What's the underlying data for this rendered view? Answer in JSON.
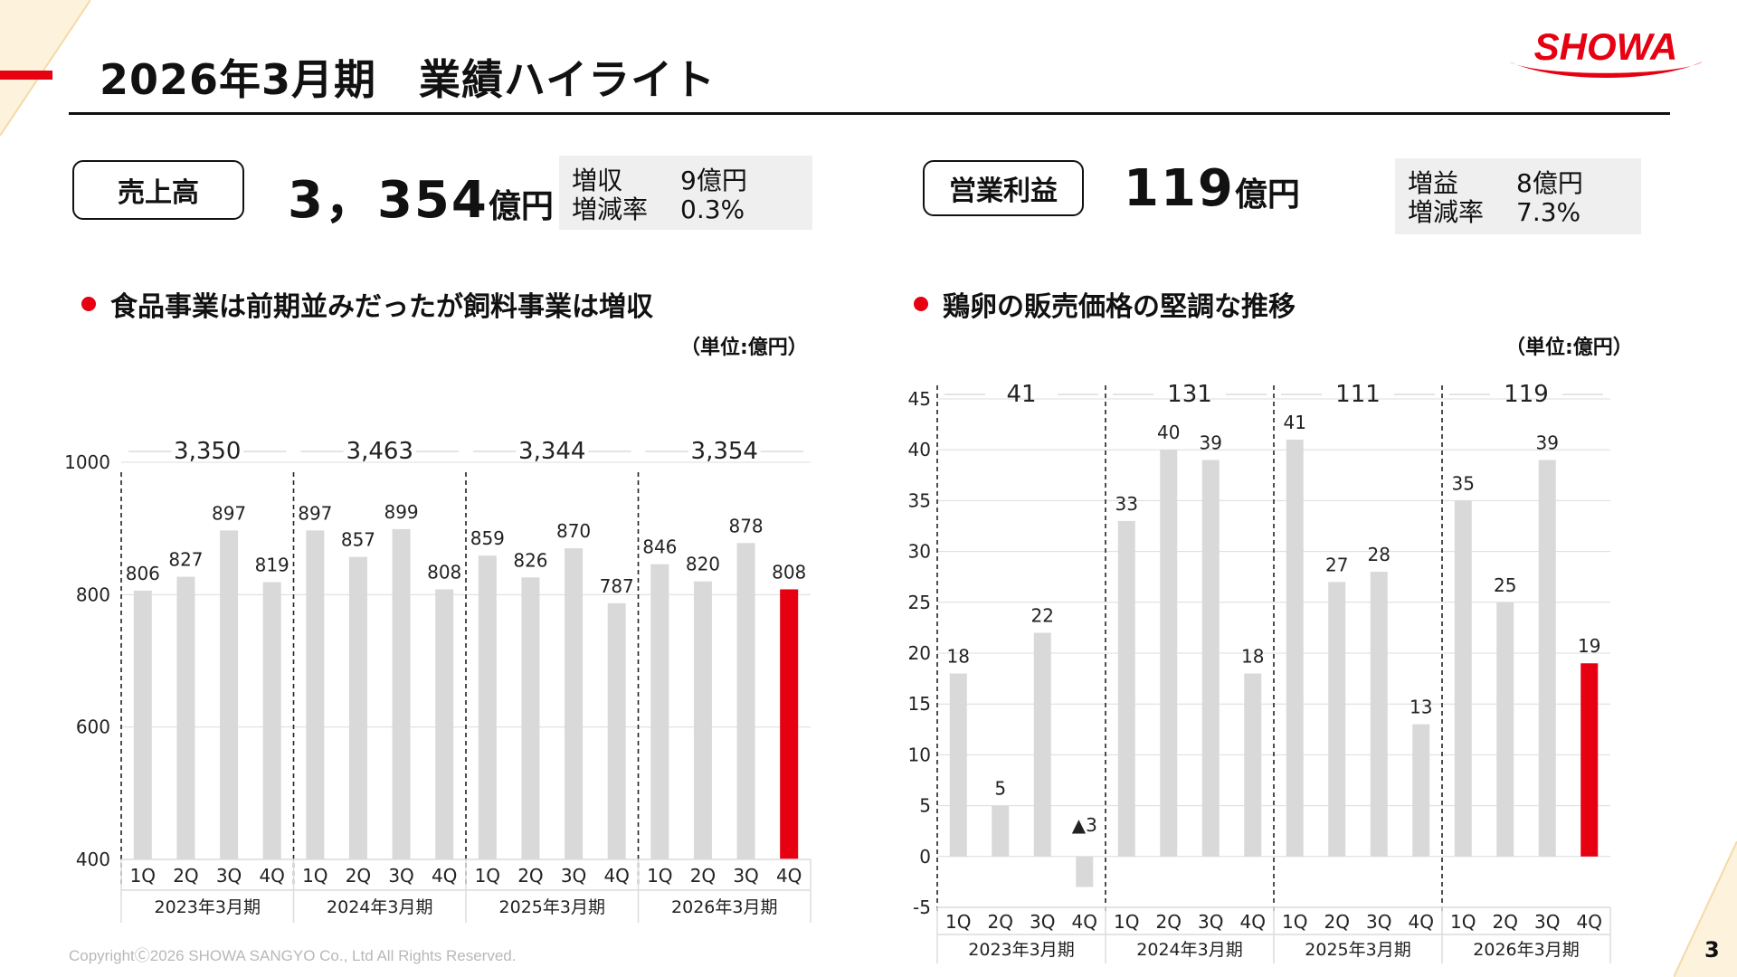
{
  "header": {
    "title": "2026年3月期　業績ハイライト",
    "logo_text": "SHOWA",
    "accent_color": "#e60012"
  },
  "kpis": {
    "sales": {
      "label": "売上高",
      "value": "3，354",
      "unit": "億円",
      "delta_label": "増収",
      "delta_value": "9億円",
      "rate_label": "増減率",
      "rate_value": "0.3%"
    },
    "profit": {
      "label": "営業利益",
      "value": "119",
      "unit": "億円",
      "delta_label": "増益",
      "delta_value": "8億円",
      "rate_label": "増減率",
      "rate_value": "7.3%"
    }
  },
  "sections": {
    "left_heading": "食品事業は前期並みだったが飼料事業は増収",
    "right_heading": "鶏卵の販売価格の堅調な推移",
    "left_unit": "（単位:億円）",
    "right_unit": "（単位:億円）"
  },
  "chart_data": [
    {
      "type": "bar",
      "categories": [
        "1Q",
        "2Q",
        "3Q",
        "4Q",
        "1Q",
        "2Q",
        "3Q",
        "4Q",
        "1Q",
        "2Q",
        "3Q",
        "4Q",
        "1Q",
        "2Q",
        "3Q",
        "4Q"
      ],
      "groups": [
        "2023年3月期",
        "2024年3月期",
        "2025年3月期",
        "2026年3月期"
      ],
      "group_totals": [
        "3,350",
        "3,463",
        "3,344",
        "3,354"
      ],
      "values": [
        806,
        827,
        897,
        819,
        897,
        857,
        899,
        808,
        859,
        826,
        870,
        787,
        846,
        820,
        878,
        808
      ],
      "value_labels": [
        "806",
        "827",
        "897",
        "819",
        "897",
        "857",
        "899",
        "808",
        "859",
        "826",
        "870",
        "787",
        "846",
        "820",
        "878",
        "808"
      ],
      "highlight_index": 15,
      "ylim": [
        400,
        1000
      ],
      "yticks": [
        400,
        600,
        800,
        1000
      ],
      "colors": {
        "bar": "#d9d9d9",
        "highlight": "#e60012"
      },
      "grid": true
    },
    {
      "type": "bar",
      "categories": [
        "1Q",
        "2Q",
        "3Q",
        "4Q",
        "1Q",
        "2Q",
        "3Q",
        "4Q",
        "1Q",
        "2Q",
        "3Q",
        "4Q",
        "1Q",
        "2Q",
        "3Q",
        "4Q"
      ],
      "groups": [
        "2023年3月期",
        "2024年3月期",
        "2025年3月期",
        "2026年3月期"
      ],
      "group_totals": [
        "41",
        "131",
        "111",
        "119"
      ],
      "values": [
        18,
        5,
        22,
        -3,
        33,
        40,
        39,
        18,
        41,
        27,
        28,
        13,
        35,
        25,
        39,
        19
      ],
      "value_labels": [
        "18",
        "5",
        "22",
        "▲3",
        "33",
        "40",
        "39",
        "18",
        "41",
        "27",
        "28",
        "13",
        "35",
        "25",
        "39",
        "19"
      ],
      "highlight_index": 15,
      "ylim": [
        -5,
        45
      ],
      "yticks": [
        -5,
        0,
        5,
        10,
        15,
        20,
        25,
        30,
        35,
        40,
        45
      ],
      "colors": {
        "bar": "#d9d9d9",
        "highlight": "#e60012"
      },
      "grid": true
    }
  ],
  "footer": {
    "copyright": "CopyrightⒸ2026 SHOWA SANGYO Co., Ltd All Rights Reserved.",
    "page_number": "3"
  }
}
